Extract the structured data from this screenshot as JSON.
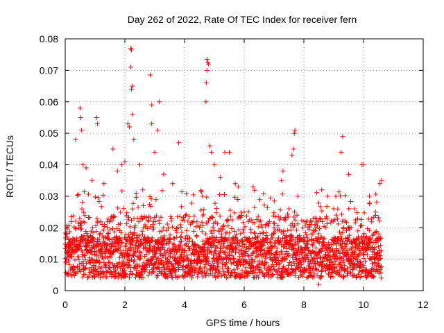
{
  "chart_data": {
    "type": "scatter",
    "title": "Day 262 of 2022, Rate Of TEC Index for receiver fern",
    "xlabel": "GPS time / hours",
    "ylabel": "ROTI / TECUs",
    "xlim": [
      0,
      12
    ],
    "ylim": [
      0,
      0.08
    ],
    "x_ticks": [
      0,
      2,
      4,
      6,
      8,
      10,
      12
    ],
    "x_tick_labels": [
      "0",
      "2",
      "4",
      "6",
      "8",
      "10",
      "12"
    ],
    "y_ticks": [
      0,
      0.01,
      0.02,
      0.03,
      0.04,
      0.05,
      0.06,
      0.07,
      0.08
    ],
    "y_tick_labels": [
      "0",
      "0.01",
      "0.02",
      "0.03",
      "0.04",
      "0.05",
      "0.06",
      "0.07",
      "0.08"
    ],
    "grid": true,
    "marker": "+",
    "series_color": "#ff0000",
    "data_range_x": [
      0,
      10.6
    ],
    "points": [
      [
        0.5,
        0.058
      ],
      [
        0.55,
        0.051
      ],
      [
        0.52,
        0.055
      ],
      [
        1.05,
        0.055
      ],
      [
        1.08,
        0.053
      ],
      [
        2.2,
        0.077
      ],
      [
        2.22,
        0.0765
      ],
      [
        2.2,
        0.071
      ],
      [
        2.25,
        0.065
      ],
      [
        2.22,
        0.064
      ],
      [
        2.25,
        0.056
      ],
      [
        2.1,
        0.053
      ],
      [
        2.15,
        0.052
      ],
      [
        2.3,
        0.048
      ],
      [
        2.85,
        0.0685
      ],
      [
        2.9,
        0.059
      ],
      [
        3.15,
        0.06
      ],
      [
        3.1,
        0.051
      ],
      [
        2.9,
        0.053
      ],
      [
        3.8,
        0.047
      ],
      [
        4.75,
        0.0735
      ],
      [
        4.78,
        0.0725
      ],
      [
        4.8,
        0.072
      ],
      [
        4.75,
        0.07
      ],
      [
        4.73,
        0.066
      ],
      [
        4.72,
        0.06
      ],
      [
        4.85,
        0.046
      ],
      [
        4.9,
        0.044
      ],
      [
        5.35,
        0.044
      ],
      [
        5.5,
        0.044
      ],
      [
        7.7,
        0.051
      ],
      [
        7.68,
        0.05
      ],
      [
        7.65,
        0.045
      ],
      [
        7.6,
        0.043
      ],
      [
        9.3,
        0.049
      ],
      [
        9.25,
        0.044
      ],
      [
        9.95,
        0.04
      ],
      [
        10.0,
        0.04
      ],
      [
        10.6,
        0.035
      ],
      [
        10.55,
        0.034
      ],
      [
        6.3,
        0.033
      ],
      [
        7.3,
        0.038
      ],
      [
        7.25,
        0.035
      ],
      [
        0.35,
        0.048
      ],
      [
        0.6,
        0.04
      ],
      [
        0.7,
        0.039
      ],
      [
        0.9,
        0.035
      ],
      [
        1.3,
        0.034
      ],
      [
        1.6,
        0.045
      ],
      [
        1.75,
        0.038
      ],
      [
        1.9,
        0.04
      ],
      [
        2.0,
        0.041
      ],
      [
        2.5,
        0.04
      ],
      [
        2.6,
        0.032
      ],
      [
        3.0,
        0.044
      ],
      [
        3.3,
        0.037
      ],
      [
        3.6,
        0.034
      ],
      [
        4.3,
        0.022
      ],
      [
        4.6,
        0.03
      ],
      [
        5.0,
        0.04
      ],
      [
        5.2,
        0.036
      ],
      [
        5.7,
        0.034
      ],
      [
        5.8,
        0.033
      ],
      [
        6.0,
        0.025
      ],
      [
        6.5,
        0.022
      ],
      [
        7.0,
        0.02
      ],
      [
        7.5,
        0.026
      ],
      [
        7.8,
        0.03
      ],
      [
        8.0,
        0.022
      ],
      [
        8.3,
        0.018
      ],
      [
        8.6,
        0.032
      ],
      [
        8.8,
        0.03
      ],
      [
        9.0,
        0.026
      ],
      [
        9.5,
        0.037
      ],
      [
        9.7,
        0.026
      ],
      [
        10.2,
        0.03
      ],
      [
        10.4,
        0.025
      ],
      [
        8.5,
        0.002
      ],
      [
        8.55,
        0.004
      ],
      [
        0.1,
        0.005
      ]
    ]
  }
}
